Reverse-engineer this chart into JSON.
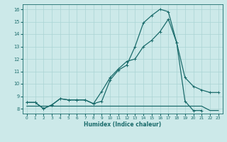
{
  "xlabel": "Humidex (Indice chaleur)",
  "xlim": [
    -0.5,
    23.5
  ],
  "ylim": [
    7.6,
    16.4
  ],
  "yticks": [
    8,
    9,
    10,
    11,
    12,
    13,
    14,
    15,
    16
  ],
  "xticks": [
    0,
    1,
    2,
    3,
    4,
    5,
    6,
    7,
    8,
    9,
    10,
    11,
    12,
    13,
    14,
    15,
    16,
    17,
    18,
    19,
    20,
    21,
    22,
    23
  ],
  "background_color": "#cce9e9",
  "grid_color": "#aad4d4",
  "line_color": "#1a6b6b",
  "line1_x": [
    0,
    1,
    2,
    3,
    4,
    5,
    6,
    7,
    8,
    9,
    10,
    11,
    12,
    13,
    14,
    15,
    16,
    17,
    18,
    19,
    20,
    21
  ],
  "line1_y": [
    8.5,
    8.5,
    8.0,
    8.3,
    8.8,
    8.7,
    8.7,
    8.7,
    8.4,
    8.6,
    10.3,
    11.1,
    11.5,
    13.0,
    14.9,
    15.5,
    16.0,
    15.8,
    13.3,
    8.6,
    7.85,
    7.85
  ],
  "line1_marker_x": [
    0,
    1,
    2,
    3,
    4,
    5,
    6,
    7,
    8,
    9,
    10,
    11,
    12,
    13,
    14,
    15,
    16,
    17,
    18,
    19,
    20,
    21
  ],
  "line2_x": [
    0,
    1,
    2,
    3,
    4,
    5,
    6,
    7,
    8,
    9,
    10,
    11,
    12,
    13,
    14,
    15,
    16,
    17,
    18,
    19,
    20,
    21,
    22,
    23
  ],
  "line2_y": [
    8.5,
    8.5,
    8.0,
    8.3,
    8.8,
    8.7,
    8.7,
    8.7,
    8.4,
    9.4,
    10.5,
    11.2,
    11.8,
    12.0,
    13.0,
    13.5,
    14.2,
    15.2,
    13.3,
    10.5,
    9.8,
    9.5,
    9.3,
    9.3
  ],
  "line3_x": [
    0,
    1,
    2,
    3,
    4,
    5,
    6,
    7,
    8,
    9,
    10,
    11,
    12,
    13,
    14,
    15,
    16,
    17,
    18,
    19,
    20,
    21,
    22,
    23
  ],
  "line3_y": [
    8.2,
    8.2,
    8.2,
    8.2,
    8.2,
    8.2,
    8.2,
    8.2,
    8.2,
    8.2,
    8.2,
    8.2,
    8.2,
    8.2,
    8.2,
    8.2,
    8.2,
    8.2,
    8.2,
    8.2,
    8.2,
    8.2,
    7.85,
    7.85
  ]
}
